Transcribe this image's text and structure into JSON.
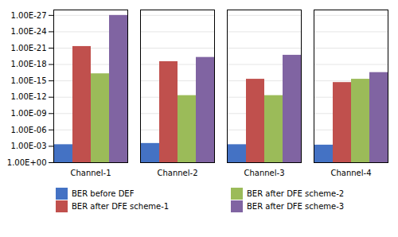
{
  "chart_data": {
    "type": "bar",
    "categories": [
      "Channel-1",
      "Channel-2",
      "Channel-3",
      "Channel-4"
    ],
    "series": [
      {
        "name": "BER before DEF",
        "color": "#4472C4",
        "values": [
          0.0005,
          0.0003,
          0.0005,
          0.0006
        ]
      },
      {
        "name": "BER after DFE scheme-1",
        "color": "#C0504D",
        "values": [
          5e-22,
          3e-19,
          5e-16,
          2e-15
        ]
      },
      {
        "name": "BER after DFE scheme-2",
        "color": "#9BBB59",
        "values": [
          5e-17,
          5e-13,
          5e-13,
          5e-16
        ]
      },
      {
        "name": "BER after DFE scheme-3",
        "color": "#8064A2",
        "values": [
          1e-27,
          5e-20,
          2e-20,
          3e-17
        ]
      }
    ],
    "log": "y",
    "ylim": [
      1,
      1e-28
    ],
    "yticks": [
      {
        "value": 1,
        "label": "1.00E+00"
      },
      {
        "value": 0.001,
        "label": "1.00E-03"
      },
      {
        "value": 1e-06,
        "label": "1.00E-06"
      },
      {
        "value": 1e-09,
        "label": "1.00E-09"
      },
      {
        "value": 1e-12,
        "label": "1.00E-12"
      },
      {
        "value": 1e-15,
        "label": "1.00E-15"
      },
      {
        "value": 1e-18,
        "label": "1.00E-18"
      },
      {
        "value": 1e-21,
        "label": "1.00E-21"
      },
      {
        "value": 1e-24,
        "label": "1.00E-24"
      },
      {
        "value": 1e-27,
        "label": "1.00E-27"
      }
    ],
    "grid": true,
    "legend": "bottom"
  }
}
